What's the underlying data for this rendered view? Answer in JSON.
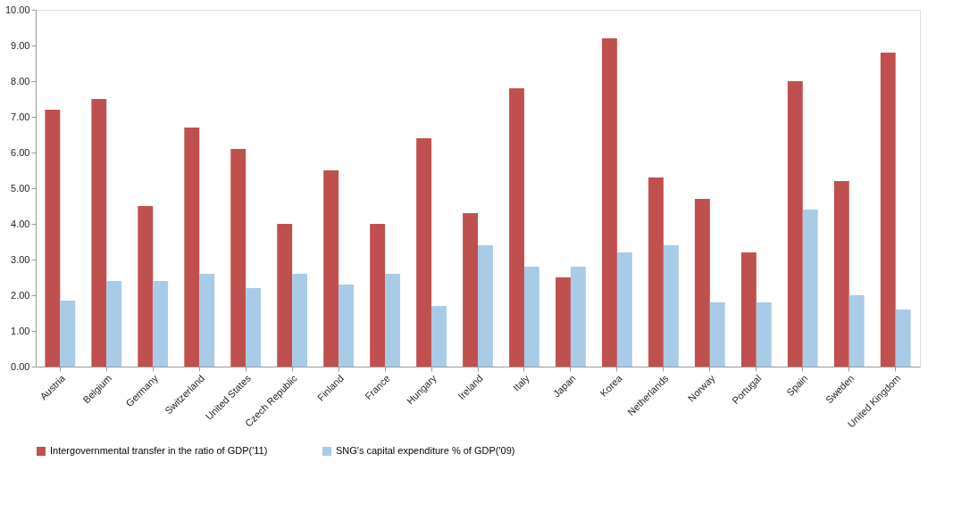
{
  "chart_data": {
    "type": "bar",
    "categories": [
      "Austria",
      "Belgium",
      "Germany",
      "Switzerland",
      "United States",
      "Czech Republic",
      "Finland",
      "France",
      "Hungary",
      "Ireland",
      "Italy",
      "Japan",
      "Korea",
      "Netherlands",
      "Norway",
      "Portugal",
      "Spain",
      "Sweden",
      "United Kingdom"
    ],
    "series": [
      {
        "name": "Intergovernmental transfer in the ratio of GDP('11)",
        "color": "#c0504d",
        "values": [
          7.2,
          7.5,
          4.5,
          6.7,
          6.1,
          4.0,
          5.5,
          4.0,
          6.4,
          4.3,
          7.8,
          2.5,
          9.2,
          5.3,
          4.7,
          3.2,
          8.0,
          5.2,
          8.8
        ]
      },
      {
        "name": "SNG's capital expenditure % of GDP('09)",
        "color": "#a8cbe8",
        "values": [
          1.85,
          2.4,
          2.4,
          2.6,
          2.2,
          2.6,
          2.3,
          2.6,
          1.7,
          3.4,
          2.8,
          2.8,
          3.2,
          3.4,
          1.8,
          1.8,
          4.4,
          2.0,
          1.6
        ]
      }
    ],
    "ylim": [
      0,
      10
    ],
    "yticks": [
      {
        "value": 0,
        "label": "0.00"
      },
      {
        "value": 1,
        "label": "1.00"
      },
      {
        "value": 2,
        "label": "2.00"
      },
      {
        "value": 3,
        "label": "3.00"
      },
      {
        "value": 4,
        "label": "4.00"
      },
      {
        "value": 5,
        "label": "5.00"
      },
      {
        "value": 6,
        "label": "6.00"
      },
      {
        "value": 7,
        "label": "7.00"
      },
      {
        "value": 8,
        "label": "8.00"
      },
      {
        "value": 9,
        "label": "9.00"
      },
      {
        "value": 10,
        "label": "10.00"
      }
    ],
    "grid": false,
    "legend": "bottom"
  }
}
